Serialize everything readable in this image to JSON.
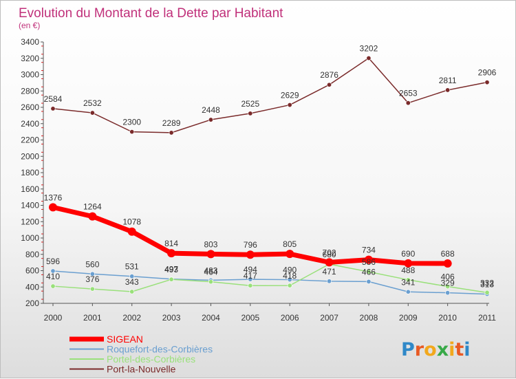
{
  "chart_data": {
    "type": "line",
    "title": "Evolution du Montant de la Dette par Habitant",
    "subtitle": "(en €)",
    "x": [
      "2000",
      "2001",
      "2002",
      "2003",
      "2004",
      "2005",
      "2006",
      "2007",
      "2008",
      "2009",
      "2010",
      "2011"
    ],
    "ylim": [
      200,
      3400
    ],
    "yticks": [
      200,
      400,
      600,
      800,
      1000,
      1200,
      1400,
      1600,
      1800,
      2000,
      2200,
      2400,
      2600,
      2800,
      3000,
      3200,
      3400
    ],
    "grid": false,
    "legend_position": "bottom-left",
    "series": [
      {
        "name": "SIGEAN",
        "color": "#ff0000",
        "values": [
          1376,
          1264,
          1078,
          814,
          803,
          796,
          805,
          702,
          734,
          690,
          688,
          null
        ]
      },
      {
        "name": "Roquefort-des-Corbières",
        "color": "#6a9fd0",
        "values": [
          596,
          560,
          531,
          497,
          483,
          494,
          490,
          471,
          466,
          341,
          329,
          313
        ]
      },
      {
        "name": "Portel-des-Corbières",
        "color": "#99e07a",
        "values": [
          410,
          376,
          343,
          493,
          464,
          417,
          418,
          680,
          586,
          488,
          406,
          332
        ]
      },
      {
        "name": "Port-la-Nouvelle",
        "color": "#7a2a2a",
        "values": [
          2584,
          2532,
          2300,
          2289,
          2448,
          2525,
          2629,
          2876,
          3202,
          2653,
          2811,
          2906
        ]
      }
    ]
  },
  "brand": {
    "letters": [
      "P",
      "r",
      "o",
      "x",
      "i",
      "t",
      "i"
    ],
    "colors": [
      "#2f88c8",
      "#e85a24",
      "#f2a81d",
      "#38a948",
      "#f2a81d",
      "#e85a24",
      "#2f88c8"
    ]
  }
}
